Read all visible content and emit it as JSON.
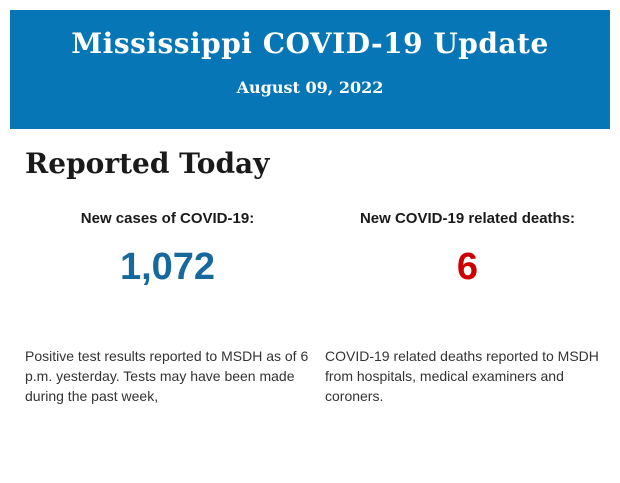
{
  "header": {
    "title": "Mississippi COVID-19 Update",
    "date": "August 09, 2022",
    "background_color": "#0776B6",
    "text_color": "#FFFFFF"
  },
  "section": {
    "heading": "Reported Today"
  },
  "stats": [
    {
      "label": "New cases of COVID-19:",
      "value": "1,072",
      "value_color": "#17699D",
      "description": "Positive test results reported to MSDH as of 6 p.m. yesterday. Tests may have been made during the past week,"
    },
    {
      "label": "New COVID-19 related deaths:",
      "value": "6",
      "value_color": "#CC0000",
      "description": "COVID-19 related deaths reported to MSDH from hospitals, medical examiners and coroners."
    }
  ]
}
